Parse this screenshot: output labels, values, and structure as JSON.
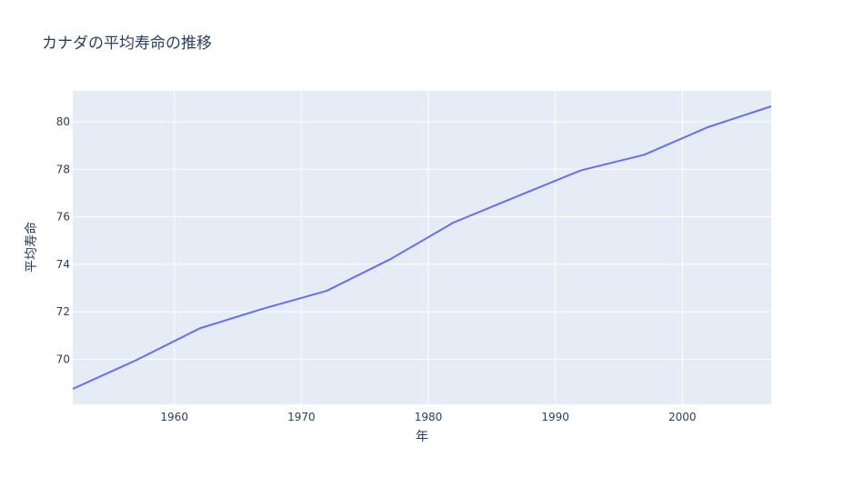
{
  "chart_data": {
    "type": "line",
    "title": "カナダの平均寿命の推移",
    "xlabel": "年",
    "ylabel": "平均寿命",
    "xlim": [
      1952,
      2007
    ],
    "ylim": [
      68.1,
      81.3
    ],
    "xticks": [
      1960,
      1970,
      1980,
      1990,
      2000
    ],
    "yticks": [
      70,
      72,
      74,
      76,
      78,
      80
    ],
    "grid": true,
    "series": [
      {
        "color": "#636efa",
        "x": [
          1952,
          1957,
          1962,
          1967,
          1972,
          1977,
          1982,
          1987,
          1992,
          1997,
          2002,
          2007
        ],
        "y": [
          68.75,
          69.96,
          71.3,
          72.13,
          72.88,
          74.21,
          75.76,
          76.86,
          77.95,
          78.61,
          79.77,
          80.65
        ]
      }
    ],
    "colors": {
      "plot_bg": "#e5ecf6",
      "grid": "#ffffff",
      "line": "#636efa",
      "text": "#2a3f5f"
    }
  }
}
